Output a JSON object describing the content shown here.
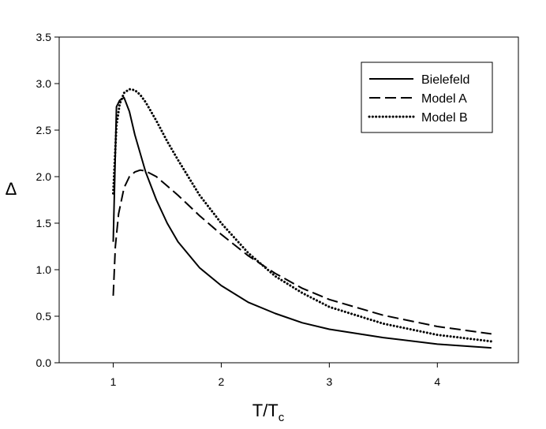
{
  "chart_data": {
    "type": "line",
    "xlabel": "T/T",
    "xlabel_sub": "c",
    "ylabel": "Δ",
    "xlim": [
      0.5,
      4.75
    ],
    "ylim": [
      0,
      3.5
    ],
    "xticks": [
      "1",
      "2",
      "3",
      "4"
    ],
    "xtick_values": [
      1,
      2,
      3,
      4
    ],
    "yticks": [
      "0.0",
      "0.5",
      "1.0",
      "1.5",
      "2.0",
      "2.5",
      "3.0",
      "3.5"
    ],
    "ytick_values": [
      0,
      0.5,
      1.0,
      1.5,
      2.0,
      2.5,
      3.0,
      3.5
    ],
    "grid": false,
    "legend_position": "top-right",
    "series": [
      {
        "name": "Bielefeld",
        "style": "solid",
        "x": [
          1.0,
          1.03,
          1.06,
          1.1,
          1.15,
          1.2,
          1.3,
          1.4,
          1.5,
          1.6,
          1.8,
          2.0,
          2.25,
          2.5,
          2.75,
          3.0,
          3.5,
          4.0,
          4.5
        ],
        "y": [
          1.3,
          2.75,
          2.82,
          2.85,
          2.7,
          2.45,
          2.05,
          1.75,
          1.5,
          1.3,
          1.02,
          0.83,
          0.65,
          0.53,
          0.43,
          0.36,
          0.27,
          0.2,
          0.16
        ]
      },
      {
        "name": "Model A",
        "style": "dashed",
        "x": [
          1.0,
          1.02,
          1.05,
          1.1,
          1.15,
          1.2,
          1.25,
          1.3,
          1.4,
          1.5,
          1.6,
          1.8,
          2.0,
          2.25,
          2.5,
          2.75,
          3.0,
          3.5,
          4.0,
          4.5
        ],
        "y": [
          0.72,
          1.25,
          1.6,
          1.88,
          2.0,
          2.05,
          2.07,
          2.06,
          2.0,
          1.9,
          1.8,
          1.58,
          1.38,
          1.15,
          0.96,
          0.8,
          0.68,
          0.51,
          0.39,
          0.31
        ]
      },
      {
        "name": "Model B",
        "style": "dotted",
        "x": [
          1.0,
          1.03,
          1.06,
          1.1,
          1.15,
          1.2,
          1.25,
          1.3,
          1.4,
          1.5,
          1.6,
          1.8,
          2.0,
          2.25,
          2.5,
          2.75,
          3.0,
          3.5,
          4.0,
          4.5
        ],
        "y": [
          1.82,
          2.55,
          2.78,
          2.9,
          2.94,
          2.93,
          2.88,
          2.8,
          2.6,
          2.38,
          2.18,
          1.8,
          1.5,
          1.18,
          0.93,
          0.75,
          0.6,
          0.42,
          0.3,
          0.23
        ]
      }
    ]
  }
}
